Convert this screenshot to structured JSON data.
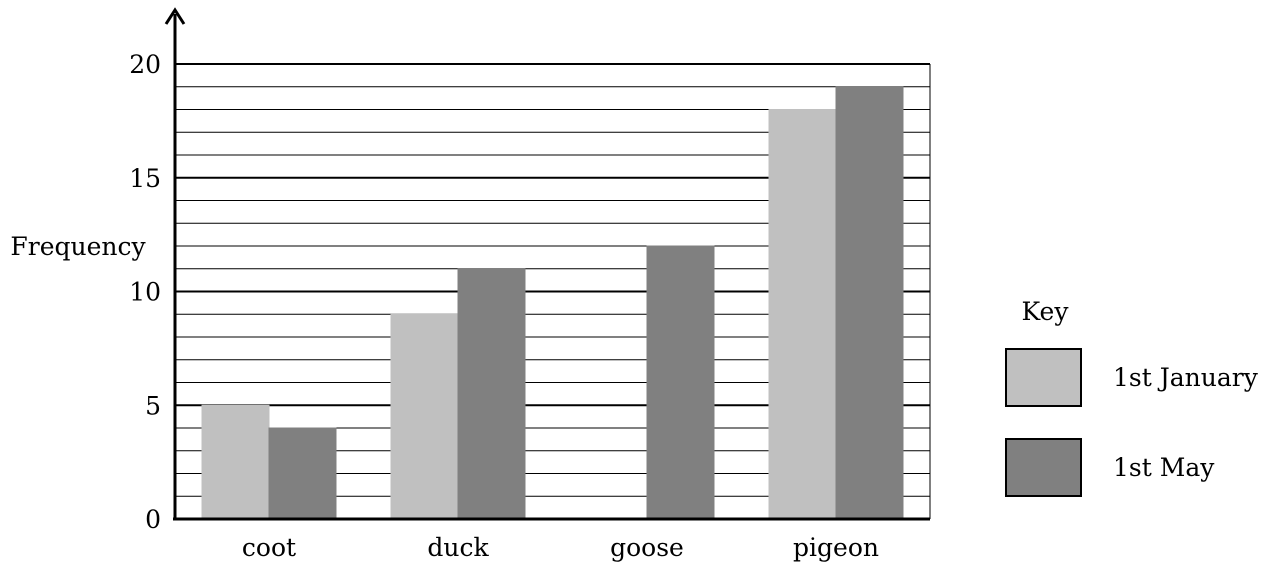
{
  "chart_data": {
    "type": "bar",
    "ylabel": "Frequency",
    "xlabel": "",
    "categories": [
      "coot",
      "duck",
      "goose",
      "pigeon"
    ],
    "series": [
      {
        "name": "1st January",
        "color": "#c0c0c0",
        "values": [
          5,
          9,
          0,
          18
        ]
      },
      {
        "name": "1st May",
        "color": "#808080",
        "values": [
          4,
          11,
          12,
          19
        ]
      }
    ],
    "ylim": [
      0,
      20
    ],
    "yticks": [
      0,
      5,
      10,
      15,
      20
    ],
    "minor_step": 1,
    "grid": true,
    "legend": {
      "title": "Key",
      "position": "right"
    }
  }
}
